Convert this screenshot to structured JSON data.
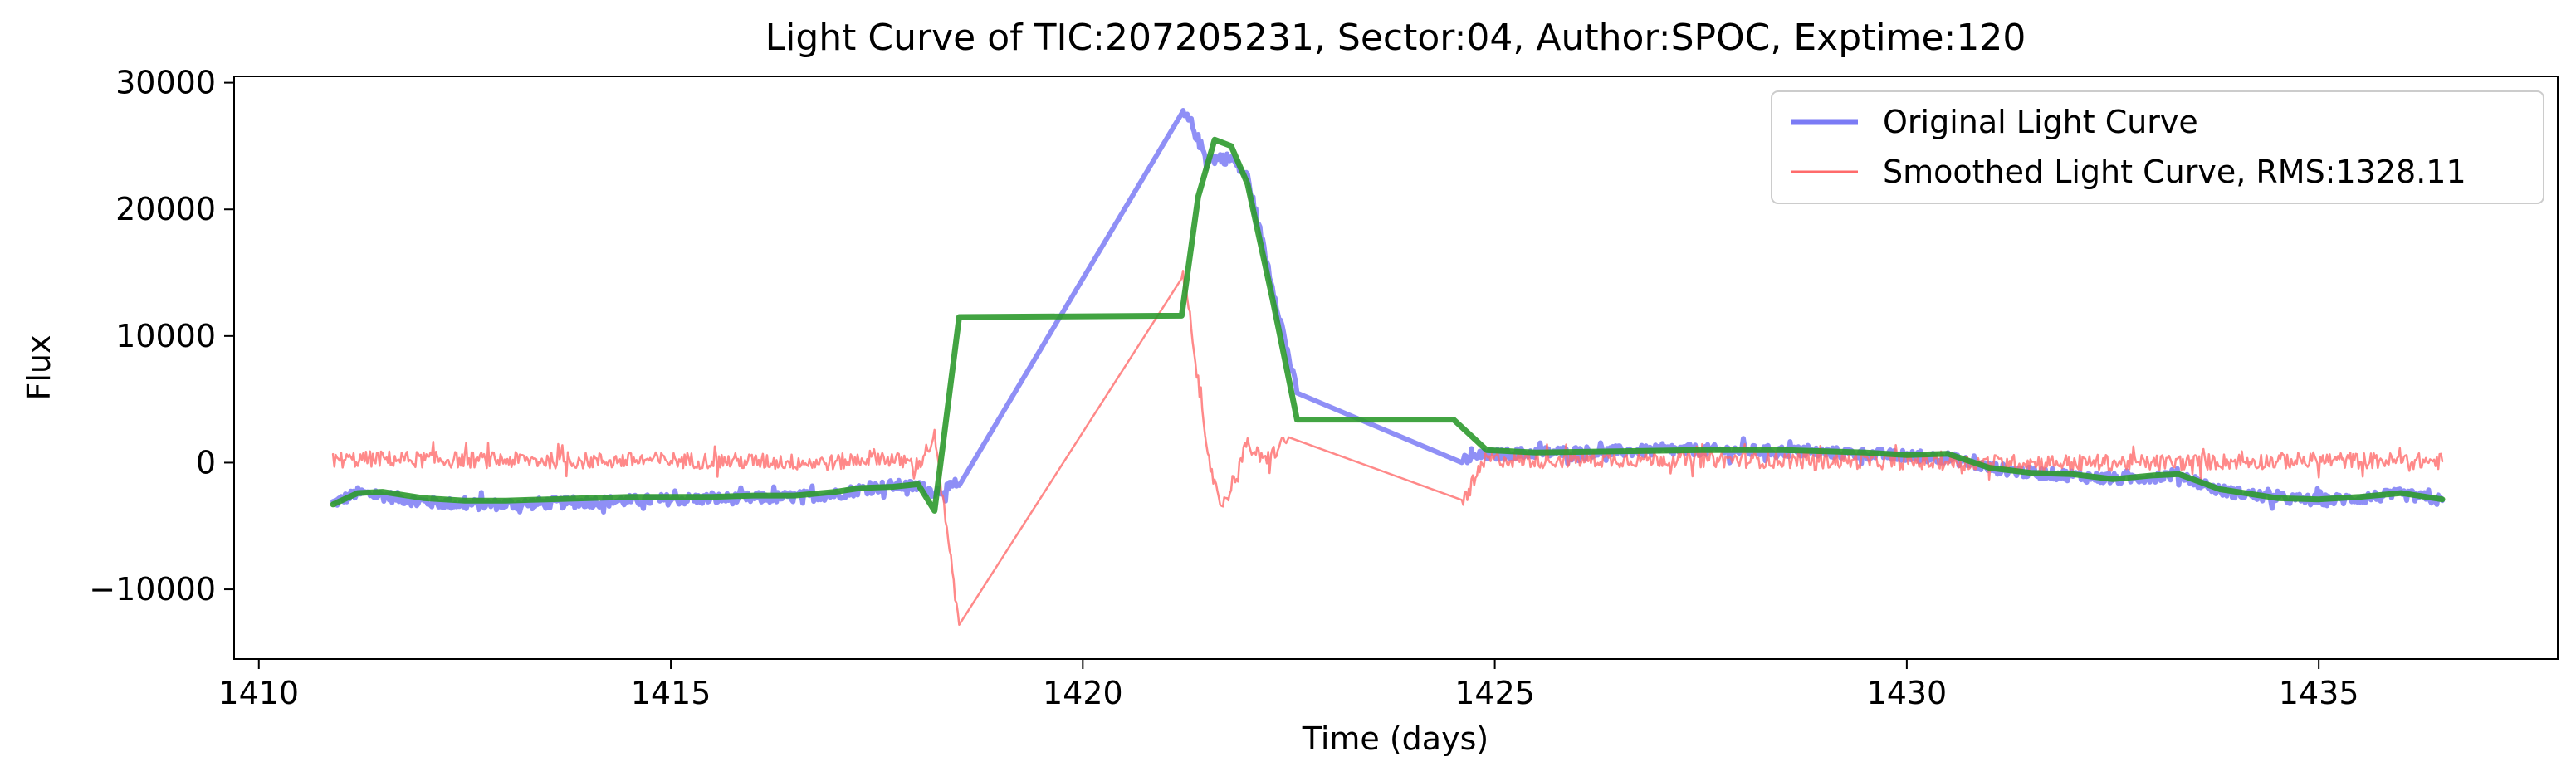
{
  "chart_data": {
    "type": "line",
    "title": "Light Curve of TIC:207205231, Sector:04, Author:SPOC, Exptime:120",
    "xlabel": "Time (days)",
    "ylabel": "Flux",
    "xlim": [
      1409.7,
      1437.9
    ],
    "ylim": [
      -15500,
      30500
    ],
    "xticks": [
      1410,
      1415,
      1420,
      1425,
      1430,
      1435
    ],
    "xtick_labels": [
      "1410",
      "1415",
      "1420",
      "1425",
      "1430",
      "1435"
    ],
    "yticks": [
      -10000,
      0,
      10000,
      20000,
      30000
    ],
    "ytick_labels": [
      "−10000",
      "0",
      "10000",
      "20000",
      "30000"
    ],
    "grid": false,
    "legend_position": "top-right",
    "series": [
      {
        "name": "Original Light Curve",
        "color": "#7b7bf5",
        "style": "noisy-thick",
        "noise": 450,
        "x": [
          1410.9,
          1411.2,
          1411.5,
          1412.0,
          1412.5,
          1413.0,
          1413.5,
          1414.0,
          1414.5,
          1415.0,
          1415.5,
          1416.0,
          1416.5,
          1417.0,
          1417.3,
          1417.7,
          1418.0,
          1418.2,
          1418.5,
          1421.2,
          1421.3,
          1421.5,
          1421.8,
          1422.0,
          1422.3,
          1422.6,
          1424.6,
          1424.9,
          1425.5,
          1426.5,
          1427.5,
          1428.5,
          1429.5,
          1430.0,
          1430.5,
          1431.0,
          1431.5,
          1432.0,
          1432.5,
          1433.0,
          1433.3,
          1433.8,
          1434.5,
          1435.0,
          1435.5,
          1436.0,
          1436.5
        ],
        "y": [
          -3200,
          -2400,
          -2600,
          -3100,
          -3300,
          -3300,
          -3200,
          -3100,
          -3000,
          -2900,
          -2850,
          -2800,
          -2700,
          -2500,
          -2100,
          -1800,
          -1900,
          -2300,
          -1800,
          27500,
          27000,
          24000,
          24000,
          22500,
          14000,
          5500,
          200,
          600,
          800,
          900,
          1000,
          900,
          700,
          500,
          400,
          -400,
          -800,
          -1000,
          -1300,
          -1100,
          -900,
          -2200,
          -2800,
          -3000,
          -2800,
          -2500,
          -3000
        ]
      },
      {
        "name": "Smoothed Light Curve, RMS:1328.11",
        "color": "#ff6b6b",
        "style": "noisy-thin",
        "noise": 650,
        "x": [
          1410.9,
          1411.5,
          1412.0,
          1413.0,
          1414.0,
          1415.0,
          1416.0,
          1417.0,
          1417.5,
          1418.0,
          1418.2,
          1418.5,
          1421.2,
          1421.3,
          1421.5,
          1421.7,
          1422.0,
          1422.2,
          1422.5,
          1424.6,
          1424.9,
          1425.5,
          1427.0,
          1428.5,
          1430.0,
          1431.0,
          1432.0,
          1433.0,
          1434.0,
          1435.0,
          1436.5
        ],
        "y": [
          200,
          300,
          250,
          200,
          150,
          200,
          100,
          0,
          500,
          -200,
          2000,
          -12800,
          15000,
          12000,
          800,
          -3500,
          1500,
          0,
          2000,
          -3200,
          300,
          200,
          300,
          200,
          100,
          0,
          0,
          0,
          100,
          200,
          100
        ]
      },
      {
        "name": "",
        "color": "#2e9a2e",
        "style": "solid-thick",
        "noise": 0,
        "x": [
          1410.9,
          1411.2,
          1411.5,
          1412.0,
          1412.5,
          1413.0,
          1413.5,
          1414.0,
          1414.5,
          1415.0,
          1415.5,
          1416.0,
          1416.5,
          1417.0,
          1417.3,
          1417.7,
          1418.0,
          1418.2,
          1418.5,
          1421.2,
          1421.4,
          1421.6,
          1421.8,
          1422.0,
          1422.3,
          1422.6,
          1424.5,
          1424.9,
          1425.5,
          1426.5,
          1427.5,
          1428.5,
          1429.5,
          1430.0,
          1430.5,
          1431.0,
          1431.5,
          1432.0,
          1432.5,
          1433.0,
          1433.3,
          1433.8,
          1434.5,
          1435.0,
          1435.5,
          1436.0,
          1436.5
        ],
        "y": [
          -3300,
          -2400,
          -2300,
          -2800,
          -3000,
          -3000,
          -2900,
          -2800,
          -2700,
          -2700,
          -2700,
          -2600,
          -2600,
          -2300,
          -2000,
          -1900,
          -1700,
          -3800,
          11500,
          11600,
          21000,
          25500,
          25000,
          22000,
          13000,
          3400,
          3400,
          1000,
          800,
          900,
          1000,
          1000,
          800,
          600,
          700,
          -400,
          -800,
          -900,
          -1300,
          -1000,
          -900,
          -2100,
          -2800,
          -2900,
          -2700,
          -2400,
          -2900
        ]
      }
    ],
    "legend": [
      {
        "label": "Original Light Curve",
        "color": "#7b7bf5"
      },
      {
        "label": "Smoothed Light Curve, RMS:1328.11",
        "color": "#ff6b6b"
      }
    ]
  }
}
